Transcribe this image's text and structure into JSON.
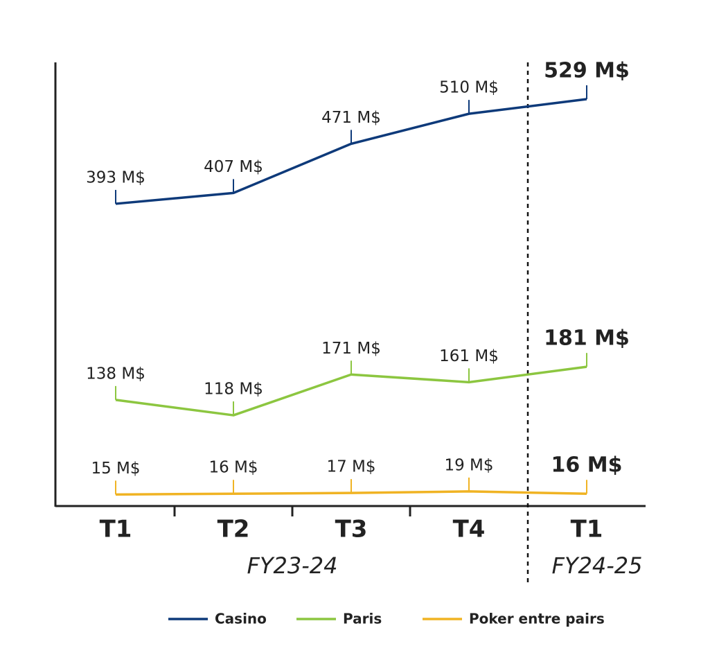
{
  "chart_data": {
    "type": "line",
    "categories": [
      "T1",
      "T2",
      "T3",
      "T4",
      "T1"
    ],
    "groups": [
      "FY23-24",
      "FY23-24",
      "FY23-24",
      "FY23-24",
      "FY24-25"
    ],
    "series": [
      {
        "name": "Casino",
        "color": "#0e3a7a",
        "values": [
          393,
          407,
          471,
          510,
          529
        ],
        "value_labels": [
          "393 M$",
          "407 M$",
          "471 M$",
          "510 M$",
          "529 M$"
        ]
      },
      {
        "name": "Paris",
        "color": "#8cc640",
        "values": [
          138,
          118,
          171,
          161,
          181
        ],
        "value_labels": [
          "138 M$",
          "118 M$",
          "171 M$",
          "161 M$",
          "181 M$"
        ]
      },
      {
        "name": "Poker entre pairs",
        "color": "#f0b323",
        "values": [
          15,
          16,
          17,
          19,
          16
        ],
        "value_labels": [
          "15 M$",
          "16 M$",
          "17 M$",
          "19 M$",
          "16 M$"
        ]
      }
    ],
    "ylim": [
      0,
      575
    ],
    "legend": "bottom"
  }
}
